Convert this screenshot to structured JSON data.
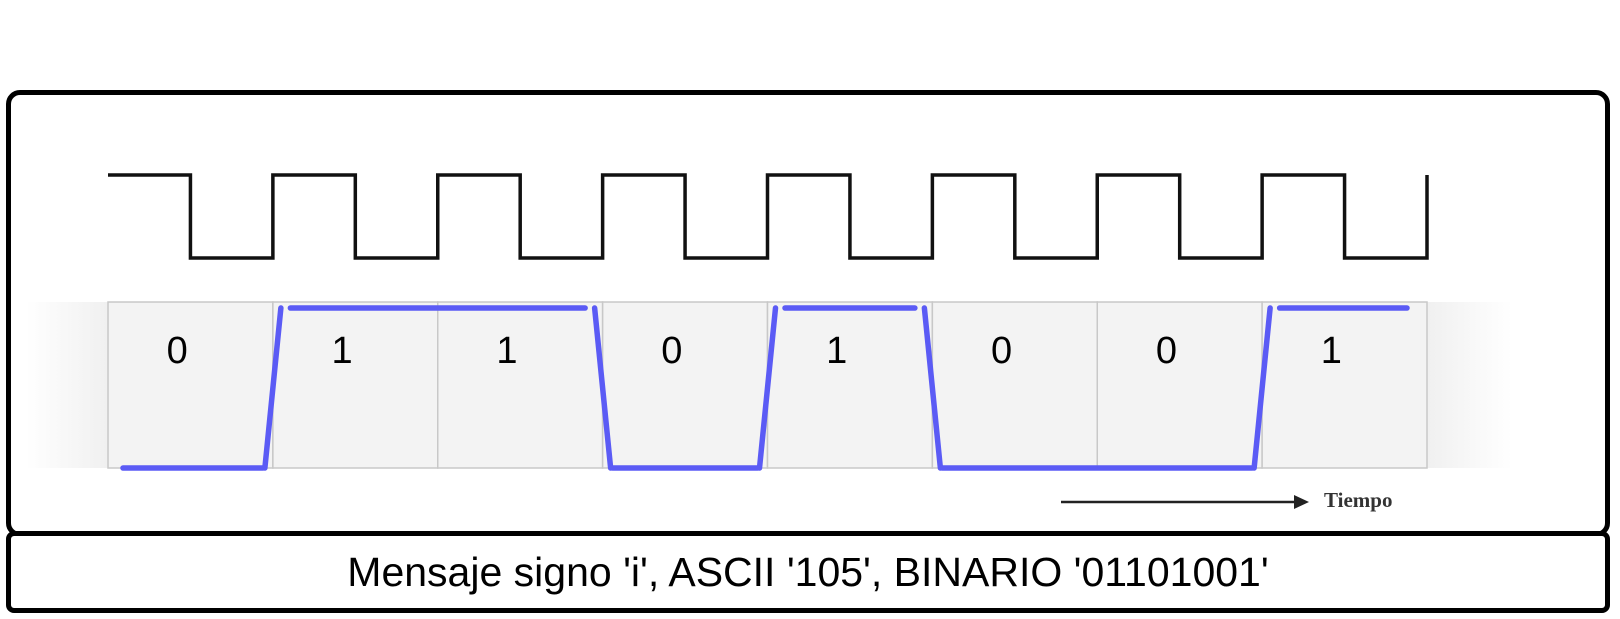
{
  "chart_data": {
    "type": "timing-diagram",
    "title": "",
    "clock_periods": 8,
    "bits": [
      "0",
      "1",
      "1",
      "0",
      "1",
      "0",
      "0",
      "1"
    ],
    "signal_levels": [
      0,
      1,
      1,
      0,
      1,
      0,
      0,
      1
    ],
    "time_axis_label": "Tiempo",
    "colors": {
      "clock": "#111111",
      "signal": "#5b5bf5",
      "cell_border": "#c8c8c8",
      "cell_fill": "#f3f3f3"
    }
  },
  "caption": {
    "text": "Mensaje signo 'i', ASCII '105', BINARIO '01101001'"
  }
}
